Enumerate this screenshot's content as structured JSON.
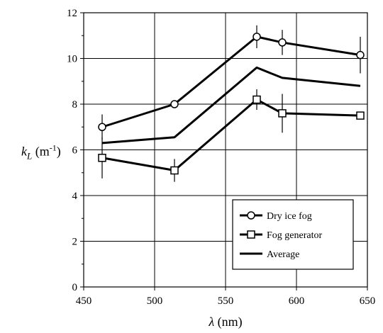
{
  "chart_data": {
    "type": "line",
    "xlabel_symbol": "λ",
    "xlabel_unit": " (nm)",
    "ylabel_symbol": "k",
    "ylabel_sub": "L",
    "ylabel_unit_pre": " (m",
    "ylabel_unit_sup": "-1",
    "ylabel_unit_post": ")",
    "xlim": [
      450,
      650
    ],
    "ylim": [
      0,
      12
    ],
    "xticks": [
      450,
      500,
      550,
      600,
      650
    ],
    "yticks": [
      0,
      2,
      4,
      6,
      8,
      10,
      12
    ],
    "grid": true,
    "legend_position": "bottom-right",
    "series": [
      {
        "name": "Dry ice fog",
        "marker": "circle",
        "x": [
          463,
          514,
          572,
          590,
          645
        ],
        "y": [
          7.0,
          8.0,
          10.95,
          10.7,
          10.15
        ],
        "err": [
          0.55,
          0.0,
          0.5,
          0.55,
          0.8
        ]
      },
      {
        "name": "Fog generator",
        "marker": "square",
        "x": [
          463,
          514,
          572,
          590,
          645
        ],
        "y": [
          5.65,
          5.1,
          8.2,
          7.6,
          7.5
        ],
        "err": [
          0.9,
          0.5,
          0.45,
          0.85,
          0.0
        ]
      },
      {
        "name": "Average",
        "marker": "none",
        "x": [
          463,
          514,
          572,
          590,
          645
        ],
        "y": [
          6.3,
          6.55,
          9.6,
          9.15,
          8.8
        ],
        "err": [
          0,
          0,
          0,
          0,
          0
        ]
      }
    ]
  }
}
